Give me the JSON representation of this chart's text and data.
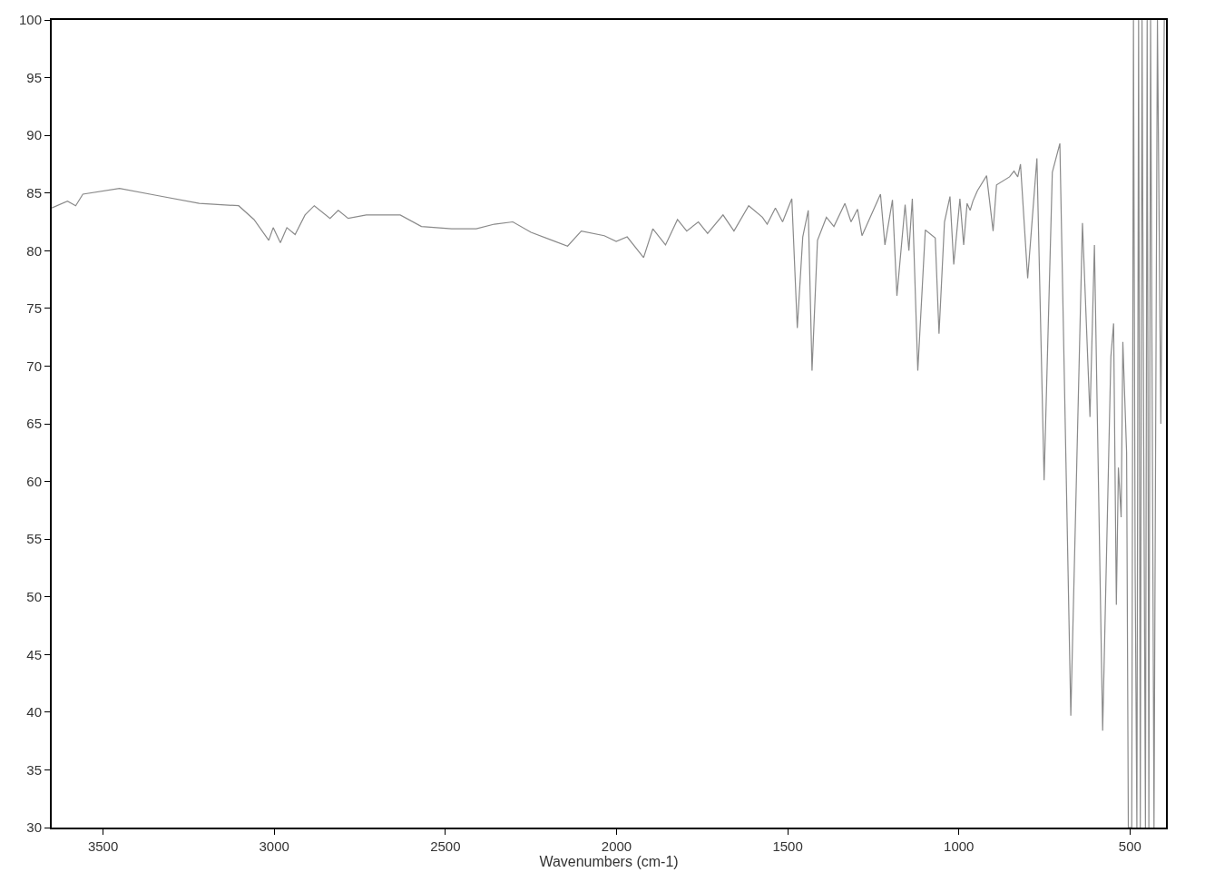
{
  "chart_data": {
    "type": "line",
    "xlabel": "Wavenumbers (cm-1)",
    "xlim": [
      3650,
      395
    ],
    "ylim": [
      30,
      100
    ],
    "xticks": [
      3500,
      3000,
      2500,
      2000,
      1500,
      1000,
      500
    ],
    "yticks": [
      30,
      35,
      40,
      45,
      50,
      55,
      60,
      65,
      70,
      75,
      80,
      85,
      90,
      95,
      100
    ],
    "grid": false,
    "marker": "none",
    "line_style": "solid",
    "series": [
      {
        "color": "#8a8a8a",
        "x": [
          3650,
          3604,
          3580,
          3559,
          3452,
          3345,
          3219,
          3104,
          3059,
          3016,
          3003,
          2982,
          2963,
          2939,
          2910,
          2883,
          2837,
          2813,
          2784,
          2731,
          2632,
          2570,
          2482,
          2410,
          2357,
          2303,
          2250,
          2188,
          2143,
          2103,
          2036,
          2001,
          1969,
          1921,
          1894,
          1857,
          1822,
          1795,
          1761,
          1734,
          1689,
          1657,
          1614,
          1574,
          1560,
          1536,
          1515,
          1488,
          1472,
          1456,
          1440,
          1429,
          1413,
          1387,
          1365,
          1333,
          1315,
          1296,
          1283,
          1229,
          1216,
          1194,
          1181,
          1157,
          1146,
          1136,
          1120,
          1098,
          1069,
          1058,
          1042,
          1026,
          1015,
          997,
          986,
          976,
          967,
          959,
          946,
          919,
          900,
          890,
          852,
          839,
          828,
          820,
          799,
          772,
          751,
          727,
          705,
          673,
          639,
          617,
          604,
          580,
          556,
          548,
          540,
          534,
          526,
          521,
          510,
          505,
          495,
          490,
          485,
          480,
          475,
          470,
          465,
          460,
          455,
          450,
          445,
          440,
          430,
          420,
          410,
          400
        ],
        "values": [
          83.7,
          84.3,
          83.9,
          84.9,
          85.4,
          84.8,
          84.1,
          83.9,
          82.7,
          80.9,
          82.0,
          80.7,
          82.0,
          81.4,
          83.1,
          83.9,
          82.8,
          83.5,
          82.8,
          83.1,
          83.1,
          82.1,
          81.9,
          81.9,
          82.3,
          82.5,
          81.6,
          80.9,
          80.4,
          81.7,
          81.3,
          80.8,
          81.2,
          79.4,
          81.9,
          80.5,
          82.7,
          81.7,
          82.5,
          81.5,
          83.1,
          81.7,
          83.9,
          82.9,
          82.3,
          83.7,
          82.5,
          84.5,
          73.3,
          81.2,
          83.5,
          69.6,
          80.9,
          82.9,
          82.1,
          84.1,
          82.5,
          83.6,
          81.3,
          84.9,
          80.5,
          84.4,
          76.1,
          84.0,
          80.0,
          84.5,
          69.6,
          81.8,
          81.1,
          72.8,
          82.5,
          84.7,
          78.8,
          84.5,
          80.5,
          84.1,
          83.5,
          84.3,
          85.2,
          86.5,
          81.7,
          85.7,
          86.4,
          86.9,
          86.4,
          87.5,
          77.6,
          88.0,
          60.1,
          86.8,
          89.3,
          39.7,
          82.4,
          65.6,
          80.5,
          38.4,
          70.8,
          73.7,
          49.3,
          61.2,
          56.9,
          72.1,
          62.5,
          30,
          30,
          100,
          52,
          30,
          100,
          30,
          100,
          63,
          30,
          100,
          30,
          100,
          30,
          100,
          65,
          100
        ]
      }
    ]
  }
}
